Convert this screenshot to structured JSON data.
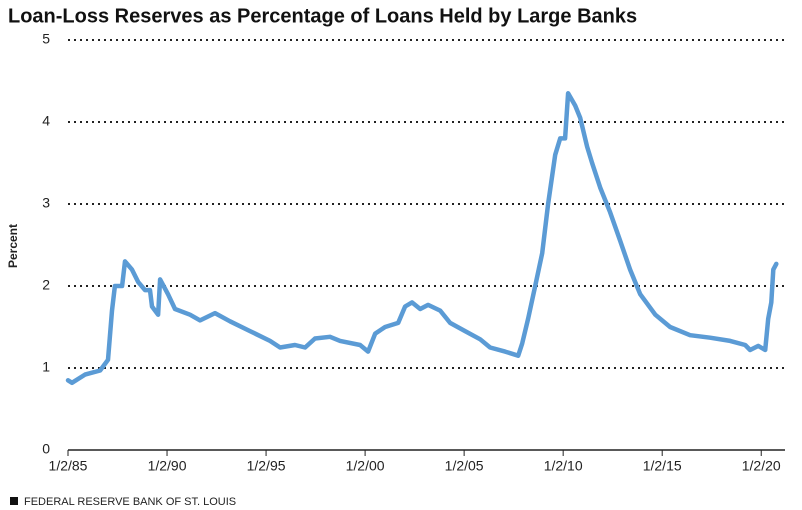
{
  "chart_data": {
    "type": "line",
    "title": "Loan-Loss Reserves as Percentage of Loans Held by Large Banks",
    "y_label": "Percent",
    "source": "FEDERAL RESERVE BANK OF ST. LOUIS",
    "x": [
      1985.0,
      1985.2,
      1985.86,
      1986.62,
      1987.02,
      1987.22,
      1987.37,
      1987.73,
      1987.88,
      1988.23,
      1988.54,
      1988.89,
      1989.14,
      1989.24,
      1989.55,
      1989.65,
      1990.05,
      1990.4,
      1991.16,
      1991.67,
      1992.42,
      1993.18,
      1994.19,
      1995.2,
      1995.71,
      1996.46,
      1996.97,
      1997.47,
      1998.23,
      1998.74,
      1999.75,
      2000.15,
      2000.51,
      2001.01,
      2001.67,
      2002.02,
      2002.37,
      2002.78,
      2003.18,
      2003.79,
      2004.29,
      2005.05,
      2005.81,
      2006.31,
      2007.07,
      2007.73,
      2007.93,
      2008.23,
      2008.59,
      2008.94,
      2009.24,
      2009.6,
      2009.85,
      2010.1,
      2010.25,
      2010.61,
      2010.86,
      2011.21,
      2011.46,
      2011.87,
      2012.37,
      2012.88,
      2013.38,
      2013.89,
      2014.65,
      2015.4,
      2016.41,
      2017.42,
      2018.43,
      2019.19,
      2019.44,
      2019.85,
      2020.2,
      2020.35,
      2020.51,
      2020.61,
      2020.76
    ],
    "series": [
      {
        "name": "Loan-loss reserves",
        "color": "#5b9bd5",
        "values": [
          0.85,
          0.82,
          0.92,
          0.97,
          1.1,
          1.7,
          2.0,
          2.0,
          2.3,
          2.2,
          2.05,
          1.95,
          1.95,
          1.75,
          1.65,
          2.08,
          1.9,
          1.72,
          1.65,
          1.58,
          1.67,
          1.57,
          1.45,
          1.33,
          1.25,
          1.28,
          1.25,
          1.36,
          1.38,
          1.33,
          1.28,
          1.2,
          1.42,
          1.5,
          1.55,
          1.75,
          1.8,
          1.72,
          1.77,
          1.7,
          1.55,
          1.45,
          1.35,
          1.25,
          1.2,
          1.15,
          1.3,
          1.6,
          2.0,
          2.4,
          3.0,
          3.6,
          3.8,
          3.8,
          4.35,
          4.2,
          4.05,
          3.7,
          3.5,
          3.2,
          2.9,
          2.55,
          2.2,
          1.9,
          1.65,
          1.5,
          1.4,
          1.37,
          1.33,
          1.28,
          1.22,
          1.27,
          1.22,
          1.6,
          1.8,
          2.2,
          2.27
        ]
      }
    ],
    "xlim": [
      1985,
      2021.2
    ],
    "xticks": [
      {
        "value": 1985,
        "label": "1/2/85"
      },
      {
        "value": 1990,
        "label": "1/2/90"
      },
      {
        "value": 1995,
        "label": "1/2/95"
      },
      {
        "value": 2000,
        "label": "1/2/00"
      },
      {
        "value": 2005,
        "label": "1/2/05"
      },
      {
        "value": 2010,
        "label": "1/2/10"
      },
      {
        "value": 2015,
        "label": "1/2/15"
      },
      {
        "value": 2020,
        "label": "1/2/20"
      }
    ],
    "ylim": [
      0,
      5
    ],
    "yticks": [
      0,
      1,
      2,
      3,
      4,
      5
    ],
    "grid": true
  }
}
